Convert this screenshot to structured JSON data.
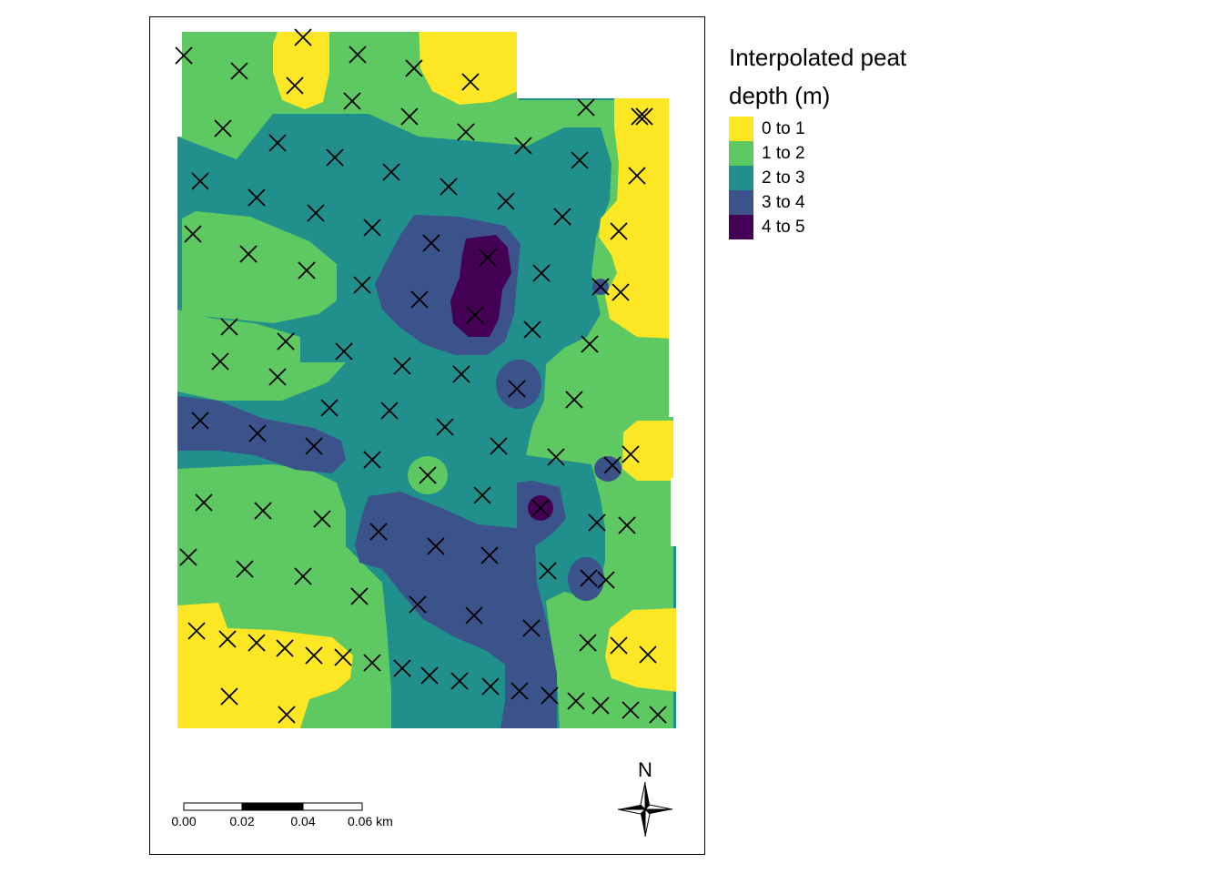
{
  "legend": {
    "title": "Interpolated peat depth (m)",
    "items": [
      {
        "label": "0 to 1",
        "color": "#FDE725"
      },
      {
        "label": "1 to 2",
        "color": "#5EC962"
      },
      {
        "label": "2 to 3",
        "color": "#21908D"
      },
      {
        "label": "3 to 4",
        "color": "#3B528B"
      },
      {
        "label": "4 to 5",
        "color": "#440154"
      }
    ]
  },
  "scale_bar": {
    "ticks": [
      "0.00",
      "0.02",
      "0.04",
      "0.06 km"
    ]
  },
  "north_arrow": {
    "label": "N"
  },
  "sample_marker": "cross-icon"
}
